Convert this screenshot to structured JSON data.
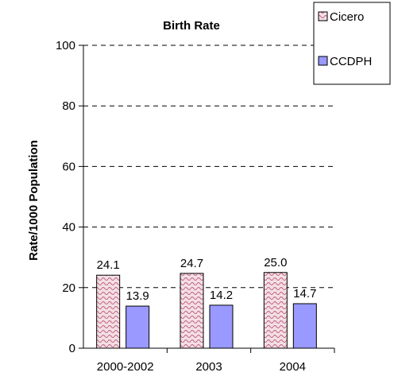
{
  "chart_data": {
    "type": "bar",
    "title": "Birth Rate",
    "xlabel": "",
    "ylabel": "Rate/1000  Population",
    "categories": [
      "2000-2002",
      "2003",
      "2004"
    ],
    "series": [
      {
        "name": "Cicero",
        "values": [
          24.1,
          24.7,
          25.0
        ],
        "labels": [
          "24.1",
          "24.7",
          "25.0"
        ],
        "color": "#e8b8c4",
        "pattern": "wave"
      },
      {
        "name": "CCDPH",
        "values": [
          13.9,
          14.2,
          14.7
        ],
        "labels": [
          "13.9",
          "14.2",
          "14.7"
        ],
        "color": "#9999ff",
        "pattern": "solid"
      }
    ],
    "ylim": [
      0,
      100
    ],
    "yticks": [
      0,
      20,
      40,
      60,
      80,
      100
    ],
    "grid": "dashed horizontal",
    "legend_position": "top-right"
  }
}
